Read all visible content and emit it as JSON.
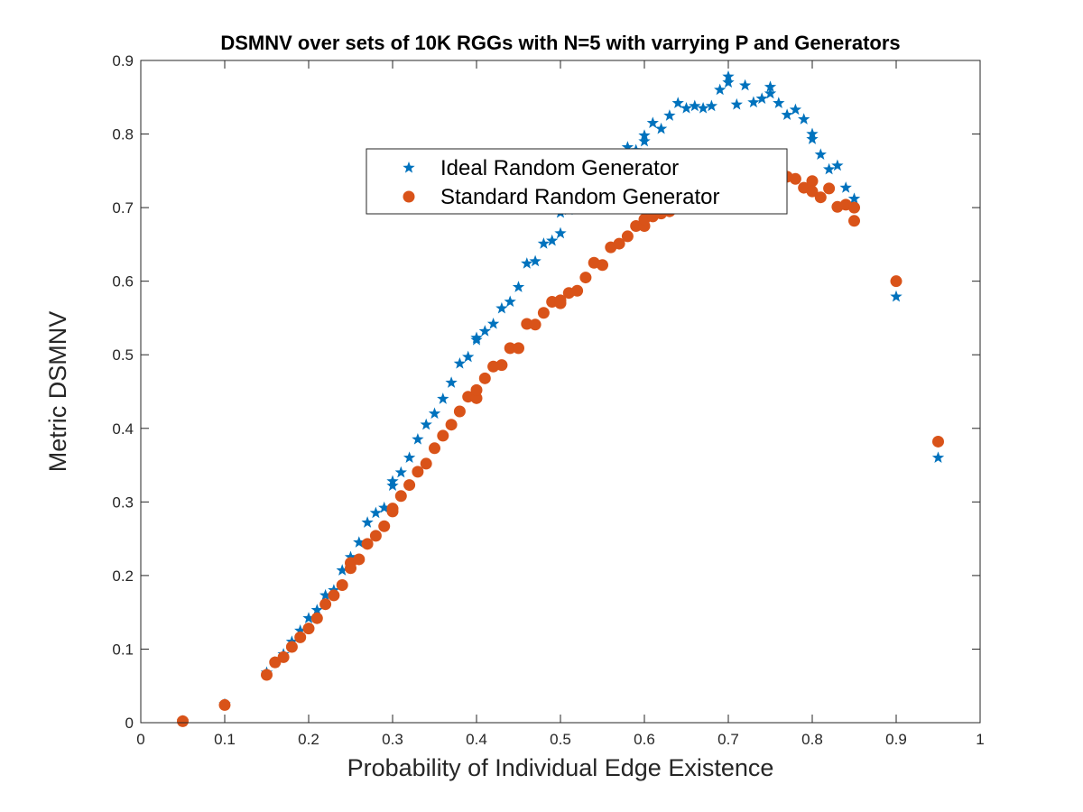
{
  "chart_data": {
    "type": "scatter",
    "title": "DSMNV over sets of 10K RGGs with N=5 with varrying P and Generators",
    "xlabel": "Probability of Individual Edge Existence",
    "ylabel": "Metric DSMNV",
    "xlim": [
      0,
      1
    ],
    "ylim": [
      0,
      0.9
    ],
    "xticks": [
      0,
      0.1,
      0.2,
      0.3,
      0.4,
      0.5,
      0.6,
      0.7,
      0.8,
      0.9,
      1
    ],
    "xtick_labels": [
      "0",
      "0.1",
      "0.2",
      "0.3",
      "0.4",
      "0.5",
      "0.6",
      "0.7",
      "0.8",
      "0.9",
      "1"
    ],
    "yticks": [
      0,
      0.1,
      0.2,
      0.3,
      0.4,
      0.5,
      0.6,
      0.7,
      0.8,
      0.9
    ],
    "ytick_labels": [
      "0",
      "0.1",
      "0.2",
      "0.3",
      "0.4",
      "0.5",
      "0.6",
      "0.7",
      "0.8",
      "0.9"
    ],
    "grid": false,
    "legend_position": "upper-center",
    "series": [
      {
        "name": "Ideal Random Generator",
        "marker": "star",
        "color": "#0072BD",
        "points": [
          [
            0.05,
            0.002
          ],
          [
            0.1,
            0.025
          ],
          [
            0.15,
            0.068
          ],
          [
            0.16,
            0.082
          ],
          [
            0.17,
            0.093
          ],
          [
            0.18,
            0.11
          ],
          [
            0.19,
            0.125
          ],
          [
            0.2,
            0.142
          ],
          [
            0.21,
            0.153
          ],
          [
            0.22,
            0.173
          ],
          [
            0.23,
            0.18
          ],
          [
            0.24,
            0.207
          ],
          [
            0.25,
            0.225
          ],
          [
            0.26,
            0.245
          ],
          [
            0.27,
            0.272
          ],
          [
            0.28,
            0.285
          ],
          [
            0.29,
            0.292
          ],
          [
            0.3,
            0.322
          ],
          [
            0.3,
            0.328
          ],
          [
            0.31,
            0.34
          ],
          [
            0.32,
            0.36
          ],
          [
            0.33,
            0.385
          ],
          [
            0.34,
            0.405
          ],
          [
            0.35,
            0.42
          ],
          [
            0.36,
            0.44
          ],
          [
            0.37,
            0.462
          ],
          [
            0.38,
            0.488
          ],
          [
            0.39,
            0.497
          ],
          [
            0.4,
            0.52
          ],
          [
            0.4,
            0.523
          ],
          [
            0.41,
            0.532
          ],
          [
            0.42,
            0.542
          ],
          [
            0.43,
            0.563
          ],
          [
            0.44,
            0.572
          ],
          [
            0.45,
            0.592
          ],
          [
            0.46,
            0.624
          ],
          [
            0.47,
            0.627
          ],
          [
            0.48,
            0.651
          ],
          [
            0.49,
            0.655
          ],
          [
            0.5,
            0.665
          ],
          [
            0.5,
            0.693
          ],
          [
            0.51,
            0.697
          ],
          [
            0.52,
            0.712
          ],
          [
            0.53,
            0.728
          ],
          [
            0.54,
            0.745
          ],
          [
            0.55,
            0.752
          ],
          [
            0.56,
            0.765
          ],
          [
            0.57,
            0.77
          ],
          [
            0.58,
            0.782
          ],
          [
            0.59,
            0.778
          ],
          [
            0.6,
            0.79
          ],
          [
            0.6,
            0.798
          ],
          [
            0.61,
            0.815
          ],
          [
            0.62,
            0.807
          ],
          [
            0.63,
            0.825
          ],
          [
            0.64,
            0.842
          ],
          [
            0.65,
            0.835
          ],
          [
            0.66,
            0.838
          ],
          [
            0.67,
            0.835
          ],
          [
            0.68,
            0.838
          ],
          [
            0.69,
            0.86
          ],
          [
            0.7,
            0.87
          ],
          [
            0.7,
            0.878
          ],
          [
            0.71,
            0.84
          ],
          [
            0.72,
            0.866
          ],
          [
            0.73,
            0.843
          ],
          [
            0.74,
            0.848
          ],
          [
            0.75,
            0.855
          ],
          [
            0.75,
            0.864
          ],
          [
            0.76,
            0.842
          ],
          [
            0.77,
            0.826
          ],
          [
            0.78,
            0.833
          ],
          [
            0.79,
            0.82
          ],
          [
            0.8,
            0.793
          ],
          [
            0.8,
            0.8
          ],
          [
            0.81,
            0.772
          ],
          [
            0.82,
            0.752
          ],
          [
            0.83,
            0.757
          ],
          [
            0.84,
            0.727
          ],
          [
            0.85,
            0.712
          ],
          [
            0.9,
            0.579
          ],
          [
            0.95,
            0.36
          ]
        ]
      },
      {
        "name": "Standard Random Generator",
        "marker": "circle",
        "color": "#D95319",
        "points": [
          [
            0.05,
            0.002
          ],
          [
            0.1,
            0.024
          ],
          [
            0.15,
            0.065
          ],
          [
            0.16,
            0.082
          ],
          [
            0.17,
            0.089
          ],
          [
            0.18,
            0.103
          ],
          [
            0.19,
            0.116
          ],
          [
            0.2,
            0.128
          ],
          [
            0.21,
            0.142
          ],
          [
            0.22,
            0.161
          ],
          [
            0.23,
            0.173
          ],
          [
            0.24,
            0.187
          ],
          [
            0.25,
            0.21
          ],
          [
            0.25,
            0.217
          ],
          [
            0.26,
            0.222
          ],
          [
            0.27,
            0.243
          ],
          [
            0.28,
            0.254
          ],
          [
            0.29,
            0.267
          ],
          [
            0.3,
            0.287
          ],
          [
            0.3,
            0.291
          ],
          [
            0.31,
            0.308
          ],
          [
            0.32,
            0.323
          ],
          [
            0.33,
            0.341
          ],
          [
            0.34,
            0.352
          ],
          [
            0.35,
            0.373
          ],
          [
            0.36,
            0.39
          ],
          [
            0.37,
            0.405
          ],
          [
            0.38,
            0.423
          ],
          [
            0.39,
            0.443
          ],
          [
            0.4,
            0.441
          ],
          [
            0.4,
            0.452
          ],
          [
            0.41,
            0.468
          ],
          [
            0.42,
            0.484
          ],
          [
            0.43,
            0.486
          ],
          [
            0.44,
            0.509
          ],
          [
            0.45,
            0.509
          ],
          [
            0.46,
            0.542
          ],
          [
            0.47,
            0.541
          ],
          [
            0.48,
            0.557
          ],
          [
            0.49,
            0.572
          ],
          [
            0.5,
            0.57
          ],
          [
            0.5,
            0.574
          ],
          [
            0.51,
            0.584
          ],
          [
            0.52,
            0.587
          ],
          [
            0.53,
            0.605
          ],
          [
            0.54,
            0.625
          ],
          [
            0.55,
            0.622
          ],
          [
            0.56,
            0.646
          ],
          [
            0.57,
            0.651
          ],
          [
            0.58,
            0.661
          ],
          [
            0.59,
            0.675
          ],
          [
            0.6,
            0.675
          ],
          [
            0.6,
            0.684
          ],
          [
            0.61,
            0.688
          ],
          [
            0.62,
            0.692
          ],
          [
            0.63,
            0.695
          ],
          [
            0.64,
            0.702
          ],
          [
            0.65,
            0.717
          ],
          [
            0.66,
            0.709
          ],
          [
            0.67,
            0.718
          ],
          [
            0.68,
            0.722
          ],
          [
            0.69,
            0.729
          ],
          [
            0.7,
            0.734
          ],
          [
            0.7,
            0.739
          ],
          [
            0.71,
            0.745
          ],
          [
            0.72,
            0.741
          ],
          [
            0.73,
            0.744
          ],
          [
            0.74,
            0.739
          ],
          [
            0.75,
            0.739
          ],
          [
            0.75,
            0.75
          ],
          [
            0.76,
            0.739
          ],
          [
            0.77,
            0.742
          ],
          [
            0.78,
            0.739
          ],
          [
            0.79,
            0.727
          ],
          [
            0.8,
            0.736
          ],
          [
            0.8,
            0.722
          ],
          [
            0.81,
            0.714
          ],
          [
            0.82,
            0.726
          ],
          [
            0.83,
            0.701
          ],
          [
            0.84,
            0.704
          ],
          [
            0.85,
            0.7
          ],
          [
            0.85,
            0.682
          ],
          [
            0.9,
            0.6
          ],
          [
            0.95,
            0.382
          ]
        ]
      }
    ]
  }
}
